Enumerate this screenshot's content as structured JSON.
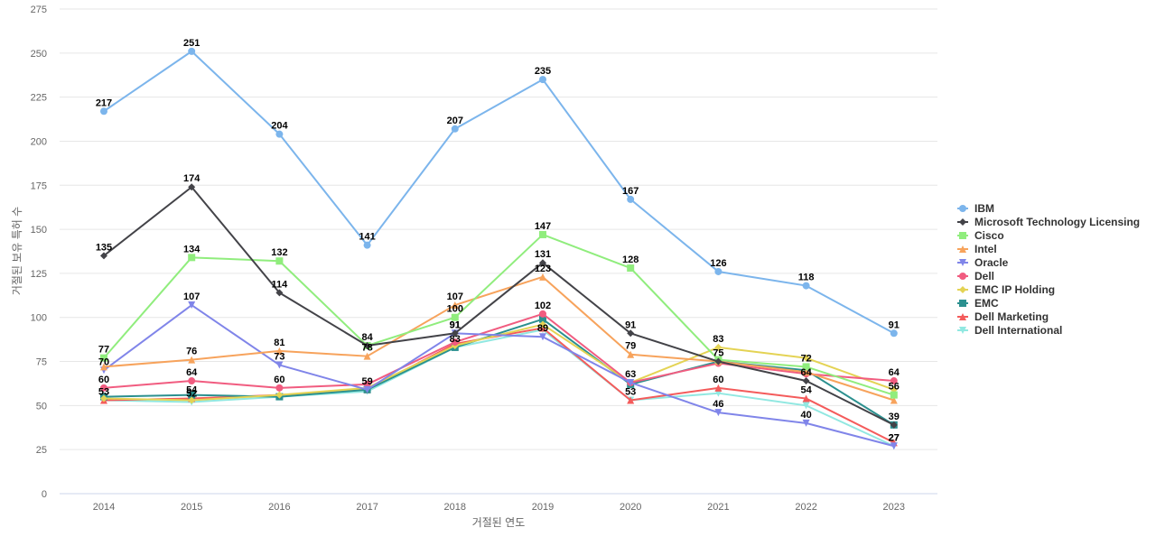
{
  "chart_data": {
    "type": "line",
    "title": "",
    "xlabel": "거절된 연도",
    "ylabel": "거절된 보유 특허 수",
    "categories": [
      "2014",
      "2015",
      "2016",
      "2017",
      "2018",
      "2019",
      "2020",
      "2021",
      "2022",
      "2023"
    ],
    "ylim": [
      0,
      275
    ],
    "yticks": [
      0,
      25,
      50,
      75,
      100,
      125,
      150,
      175,
      200,
      225,
      250,
      275
    ],
    "grid": true,
    "legend_position": "right",
    "series": [
      {
        "name": "IBM",
        "color": "#7cb5ec",
        "marker": "circle",
        "values": [
          217,
          251,
          204,
          141,
          207,
          235,
          167,
          126,
          118,
          91
        ],
        "labeled": [
          true,
          true,
          true,
          true,
          true,
          true,
          true,
          true,
          true,
          true
        ]
      },
      {
        "name": "Microsoft Technology Licensing",
        "color": "#434348",
        "marker": "diamond",
        "values": [
          135,
          174,
          114,
          84,
          91,
          131,
          91,
          75,
          64,
          39
        ],
        "labeled": [
          true,
          true,
          true,
          true,
          true,
          true,
          true,
          true,
          true,
          true
        ]
      },
      {
        "name": "Cisco",
        "color": "#90ed7d",
        "marker": "square",
        "values": [
          77,
          134,
          132,
          84,
          100,
          147,
          128,
          76,
          72,
          56
        ],
        "labeled": [
          true,
          true,
          true,
          false,
          true,
          true,
          true,
          false,
          true,
          true
        ]
      },
      {
        "name": "Intel",
        "color": "#f7a35c",
        "marker": "triangle",
        "values": [
          72,
          76,
          81,
          78,
          107,
          123,
          79,
          75,
          69,
          53
        ],
        "labeled": [
          false,
          true,
          true,
          true,
          true,
          true,
          true,
          false,
          false,
          false
        ]
      },
      {
        "name": "Oracle",
        "color": "#8085e9",
        "marker": "triangle-down",
        "values": [
          70,
          107,
          73,
          59,
          91,
          89,
          63,
          46,
          40,
          27
        ],
        "labeled": [
          true,
          true,
          true,
          false,
          true,
          true,
          true,
          true,
          true,
          true
        ]
      },
      {
        "name": "Dell",
        "color": "#f15c80",
        "marker": "circle",
        "values": [
          60,
          64,
          60,
          62,
          86,
          102,
          63,
          74,
          68,
          64
        ],
        "labeled": [
          true,
          true,
          true,
          false,
          false,
          true,
          false,
          false,
          false,
          true
        ]
      },
      {
        "name": "EMC IP Holding",
        "color": "#e4d354",
        "marker": "diamond",
        "values": [
          54,
          53,
          56,
          60,
          84,
          96,
          63,
          83,
          77,
          59
        ],
        "labeled": [
          false,
          false,
          false,
          false,
          false,
          false,
          false,
          true,
          false,
          false
        ]
      },
      {
        "name": "EMC",
        "color": "#2b908f",
        "marker": "square",
        "values": [
          55,
          56,
          55,
          59,
          83,
          99,
          62,
          75,
          70,
          39
        ],
        "labeled": [
          false,
          false,
          false,
          false,
          true,
          false,
          false,
          false,
          false,
          false
        ]
      },
      {
        "name": "Dell Marketing",
        "color": "#f45b5b",
        "marker": "triangle",
        "values": [
          53,
          54,
          56,
          59,
          85,
          94,
          53,
          60,
          54,
          29
        ],
        "labeled": [
          true,
          true,
          false,
          true,
          false,
          false,
          false,
          true,
          true,
          false
        ]
      },
      {
        "name": "Dell International",
        "color": "#91e8e1",
        "marker": "triangle-down",
        "values": [
          53,
          52,
          55,
          58,
          83,
          93,
          53,
          57,
          50,
          27
        ],
        "labeled": [
          false,
          true,
          false,
          false,
          false,
          false,
          true,
          false,
          false,
          true
        ]
      }
    ]
  }
}
